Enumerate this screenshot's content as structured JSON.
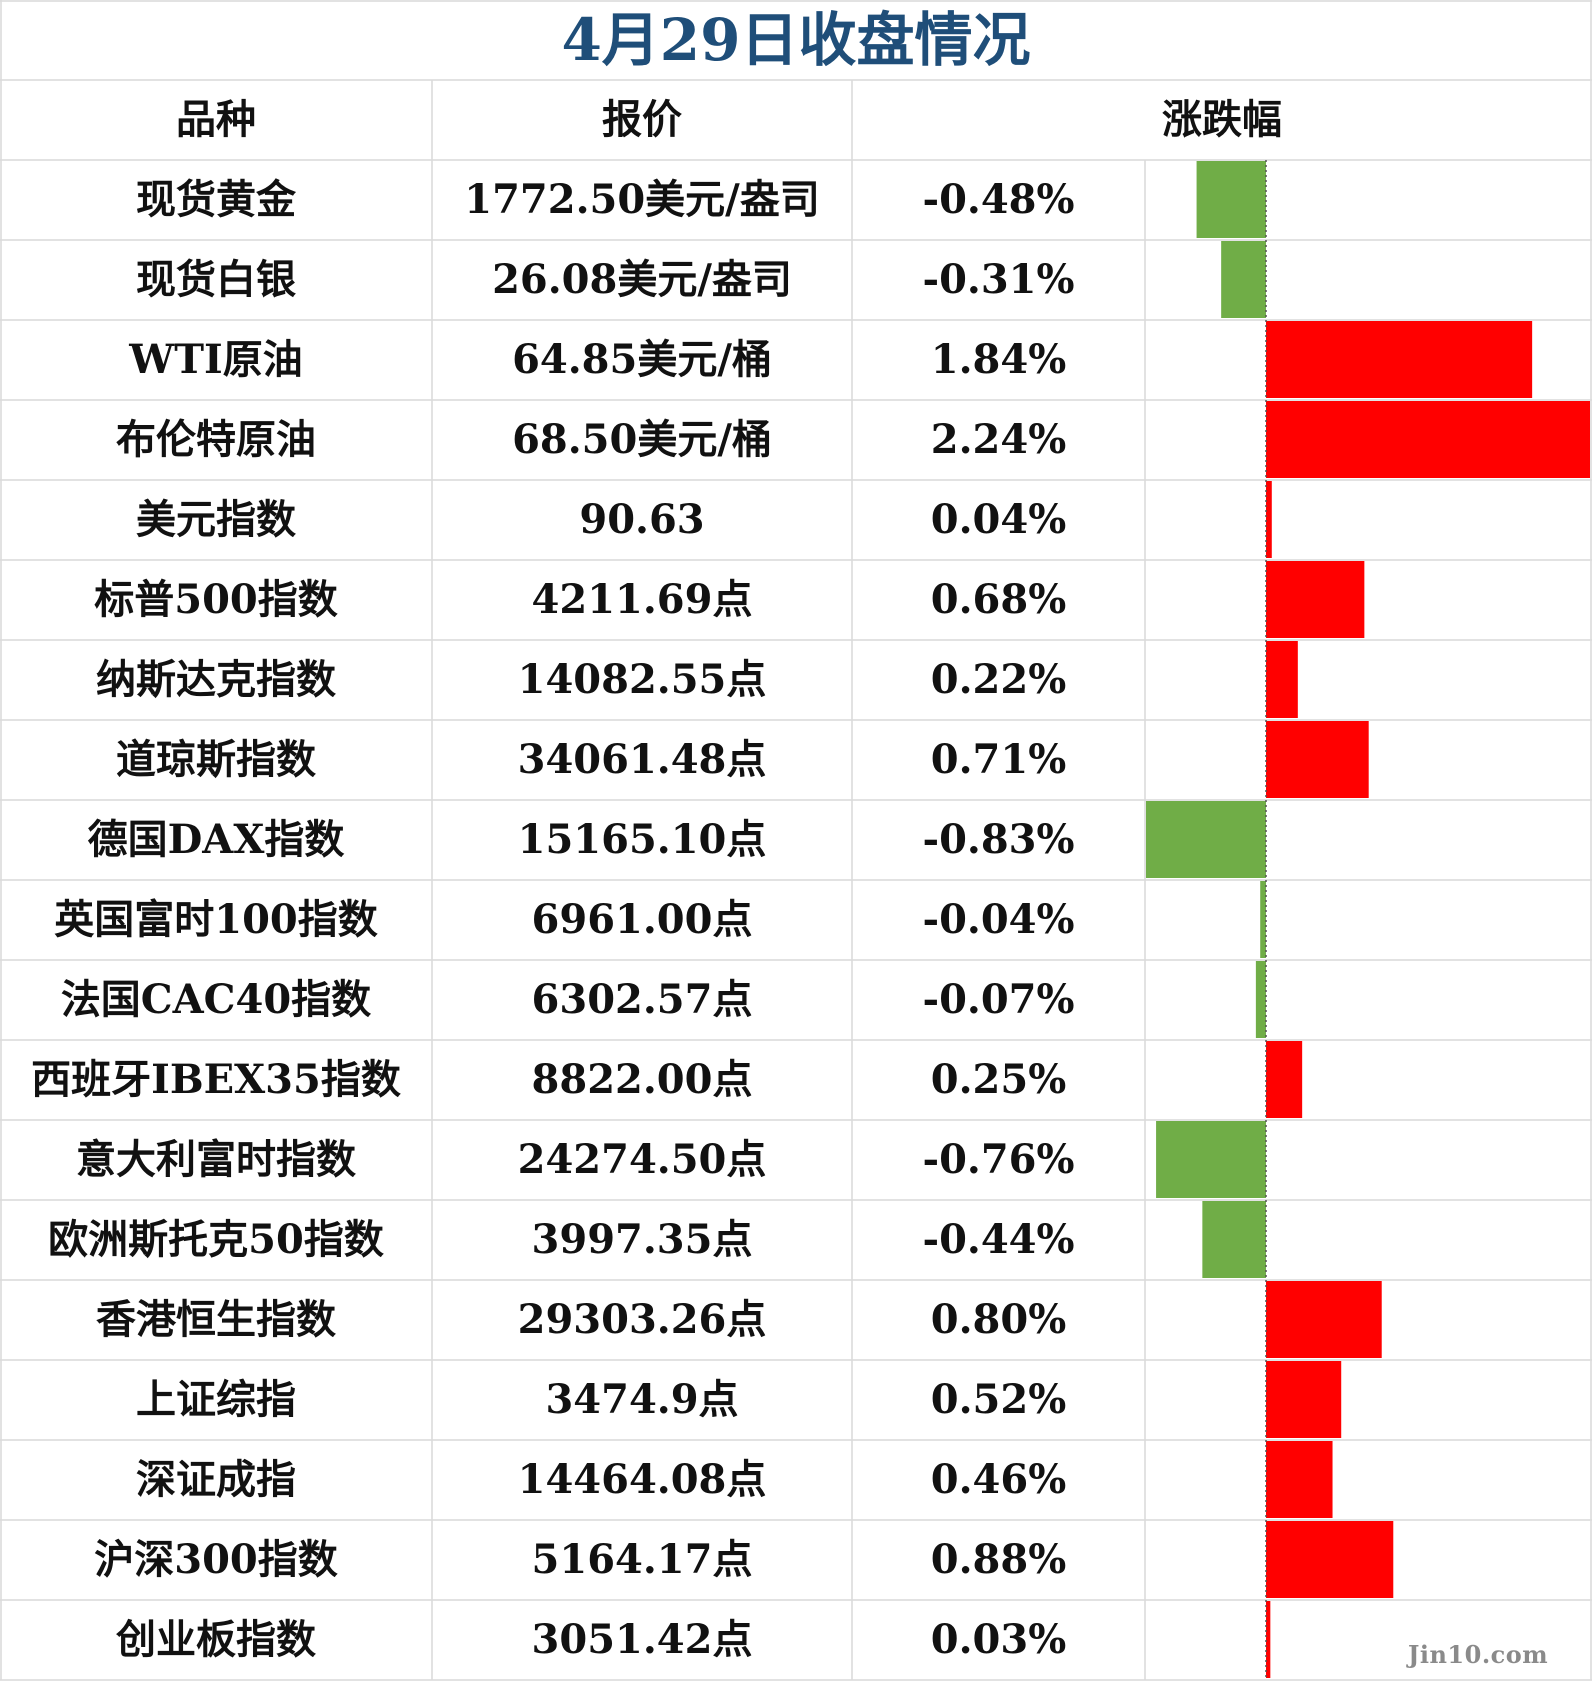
{
  "title": "4月29日收盘情况",
  "headers": {
    "name": "品种",
    "price": "报价",
    "change": "涨跌幅"
  },
  "colors": {
    "up": "#ff0000",
    "down": "#70ad47",
    "title": "#1f4e79",
    "grid": "#d9d9d9"
  },
  "chart_data": {
    "type": "bar",
    "orientation": "horizontal",
    "categories": [
      "现货黄金",
      "现货白银",
      "WTI原油",
      "布伦特原油",
      "美元指数",
      "标普500指数",
      "纳斯达克指数",
      "道琼斯指数",
      "德国DAX指数",
      "英国富时100指数",
      "法国CAC40指数",
      "西班牙IBEX35指数",
      "意大利富时指数",
      "欧洲斯托克50指数",
      "香港恒生指数",
      "上证综指",
      "深证成指",
      "沪深300指数",
      "创业板指数"
    ],
    "prices": [
      "1772.50美元/盎司",
      "26.08美元/盎司",
      "64.85美元/桶",
      "68.50美元/桶",
      "90.63",
      "4211.69点",
      "14082.55点",
      "34061.48点",
      "15165.10点",
      "6961.00点",
      "6302.57点",
      "8822.00点",
      "24274.50点",
      "3997.35点",
      "29303.26点",
      "3474.9点",
      "14464.08点",
      "5164.17点",
      "3051.42点"
    ],
    "values": [
      -0.48,
      -0.31,
      1.84,
      2.24,
      0.04,
      0.68,
      0.22,
      0.71,
      -0.83,
      -0.04,
      -0.07,
      0.25,
      -0.76,
      -0.44,
      0.8,
      0.52,
      0.46,
      0.88,
      0.03
    ],
    "labels": [
      "-0.48%",
      "-0.31%",
      "1.84%",
      "2.24%",
      "0.04%",
      "0.68%",
      "0.22%",
      "0.71%",
      "-0.83%",
      "-0.04%",
      "-0.07%",
      "0.25%",
      "-0.76%",
      "-0.44%",
      "0.80%",
      "0.52%",
      "0.46%",
      "0.88%",
      "0.03%"
    ],
    "xlim": [
      -0.83,
      2.24
    ]
  },
  "watermark": "Jin10.com"
}
